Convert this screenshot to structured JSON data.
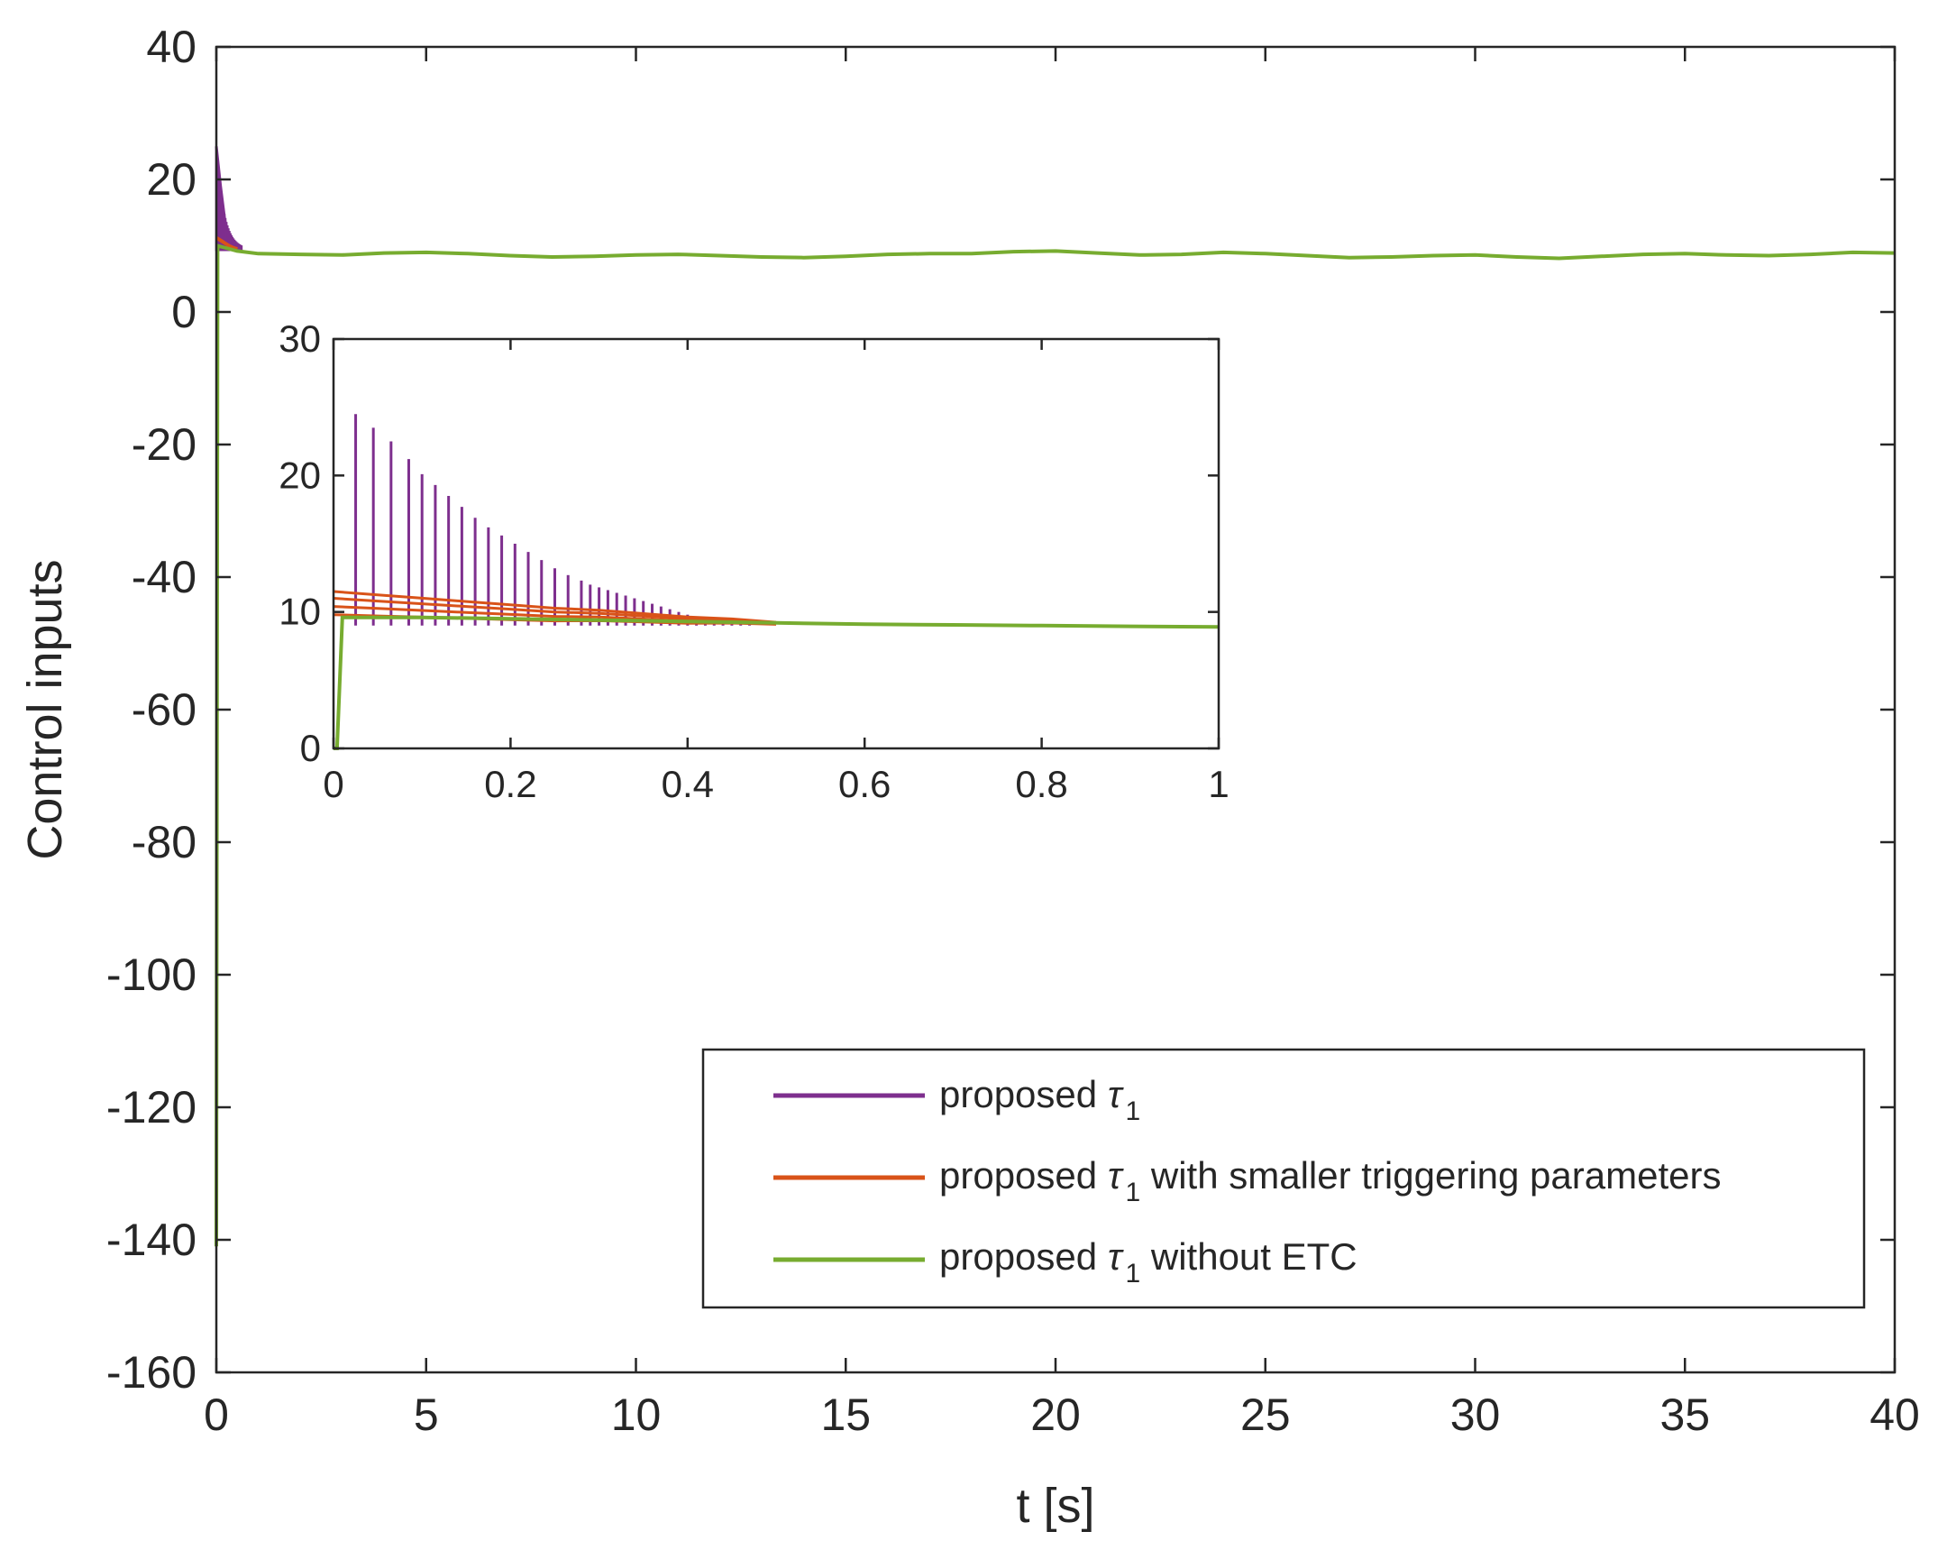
{
  "chart_data": [
    {
      "type": "line",
      "xlabel": "t [s]",
      "ylabel": "Control inputs",
      "xlim": [
        0,
        40
      ],
      "ylim": [
        -160,
        40
      ],
      "xticks": [
        0,
        5,
        10,
        15,
        20,
        25,
        30,
        35,
        40
      ],
      "yticks": [
        -160,
        -140,
        -120,
        -100,
        -80,
        -60,
        -40,
        -20,
        0,
        20,
        40
      ],
      "grid": false,
      "legend_position": "bottom-right",
      "colors": {
        "purple": "#7E2F8E",
        "orange": "#D95319",
        "green": "#77AC30"
      },
      "legend": [
        {
          "prefix": "proposed ",
          "symbol": "τ",
          "subscript": "1",
          "suffix": "",
          "color": "#7E2F8E"
        },
        {
          "prefix": "proposed ",
          "symbol": "τ",
          "subscript": "1",
          "suffix": " with smaller triggering parameters",
          "color": "#D95319"
        },
        {
          "prefix": "proposed ",
          "symbol": "τ",
          "subscript": "1",
          "suffix": " without ETC",
          "color": "#77AC30"
        }
      ],
      "series": [
        {
          "color": "#77AC30",
          "x": [
            0,
            0.005,
            0.03,
            0.5,
            1,
            2,
            3,
            4,
            5,
            6,
            7,
            8,
            9,
            10,
            11,
            12,
            13,
            14,
            15,
            16,
            17,
            18,
            19,
            20,
            21,
            22,
            23,
            24,
            25,
            26,
            27,
            28,
            29,
            30,
            31,
            32,
            33,
            34,
            35,
            36,
            37,
            38,
            39,
            40
          ],
          "y": [
            -141,
            -120,
            10,
            9.2,
            8.8,
            8.7,
            8.6,
            8.9,
            9.0,
            8.8,
            8.5,
            8.3,
            8.4,
            8.6,
            8.7,
            8.5,
            8.3,
            8.2,
            8.4,
            8.7,
            8.8,
            8.8,
            9.1,
            9.2,
            8.9,
            8.6,
            8.7,
            9.0,
            8.8,
            8.5,
            8.2,
            8.3,
            8.5,
            8.6,
            8.3,
            8.1,
            8.4,
            8.7,
            8.8,
            8.6,
            8.5,
            8.7,
            9.0,
            8.9
          ]
        },
        {
          "color": "#D95319",
          "x": [
            0,
            0.1,
            0.2,
            0.3,
            0.4,
            0.5
          ],
          "y": [
            11.2,
            10.8,
            10.4,
            10.0,
            9.7,
            9.5
          ]
        },
        {
          "color": "#7E2F8E",
          "type": "event-triggered spikes",
          "x": [
            0,
            0.1,
            0.2,
            0.3,
            0.4,
            0.5,
            0.6
          ],
          "y": [
            25,
            19,
            14,
            11,
            10,
            9.5,
            9.3
          ]
        }
      ]
    },
    {
      "type": "line",
      "role": "inset",
      "xlim": [
        0,
        1
      ],
      "ylim": [
        0,
        30
      ],
      "xticks": [
        0,
        0.2,
        0.4,
        0.6,
        0.8,
        1
      ],
      "xtick_labels": [
        "0",
        "0.2",
        "0.4",
        "0.6",
        "0.8",
        "1"
      ],
      "yticks": [
        0,
        10,
        20,
        30
      ],
      "grid": false,
      "series": [
        {
          "color": "#7E2F8E",
          "type": "event-triggered spikes",
          "x": [
            0.025,
            0.045,
            0.065,
            0.085,
            0.1,
            0.115,
            0.13,
            0.145,
            0.16,
            0.175,
            0.19,
            0.205,
            0.22,
            0.235,
            0.25,
            0.265,
            0.28,
            0.29,
            0.3,
            0.31,
            0.32,
            0.33,
            0.34,
            0.35,
            0.36,
            0.37,
            0.38,
            0.39,
            0.4,
            0.41,
            0.42,
            0.43,
            0.44,
            0.45,
            0.46,
            0.47,
            0.48
          ],
          "y": [
            24.5,
            23.5,
            22.5,
            21.2,
            20.1,
            19.3,
            18.5,
            17.7,
            16.9,
            16.2,
            15.6,
            15.0,
            14.4,
            13.8,
            13.2,
            12.7,
            12.3,
            12.0,
            11.8,
            11.6,
            11.4,
            11.2,
            11.0,
            10.8,
            10.6,
            10.4,
            10.2,
            10.0,
            9.8,
            9.6,
            9.5,
            9.4,
            9.3,
            9.2,
            9.1,
            9.05,
            9.0
          ],
          "baseline": 9.0
        },
        {
          "color": "#D95319",
          "x": [
            0,
            0.05,
            0.1,
            0.15,
            0.2,
            0.25,
            0.3,
            0.35,
            0.4,
            0.45,
            0.5
          ],
          "y": [
            11.0,
            10.8,
            10.6,
            10.4,
            10.2,
            10.0,
            9.9,
            9.7,
            9.5,
            9.4,
            9.2
          ]
        },
        {
          "color": "#77AC30",
          "x": [
            0,
            0.004,
            0.01,
            0.1,
            0.2,
            0.3,
            0.4,
            0.5,
            0.6,
            0.7,
            0.8,
            0.9,
            1.0
          ],
          "y": [
            0,
            0,
            9.6,
            9.6,
            9.5,
            9.4,
            9.3,
            9.2,
            9.1,
            9.05,
            9.0,
            8.95,
            8.9
          ]
        }
      ]
    }
  ]
}
